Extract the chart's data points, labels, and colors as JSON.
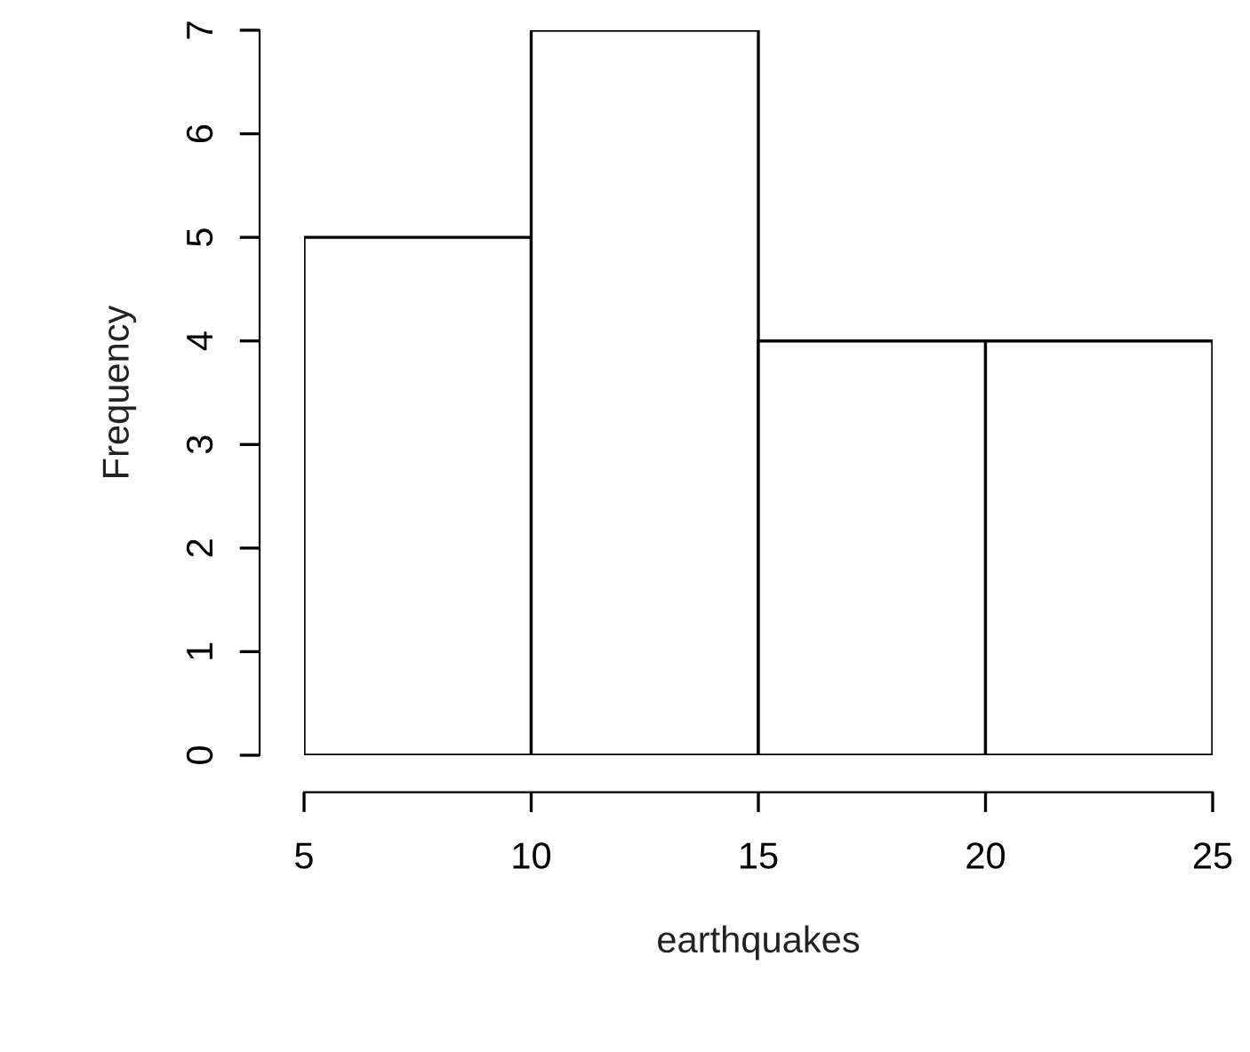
{
  "chart_data": {
    "type": "histogram",
    "xlabel": "earthquakes",
    "ylabel": "Frequency",
    "bins": [
      5,
      10,
      15,
      20,
      25
    ],
    "values": [
      5,
      7,
      4,
      4
    ],
    "color": "#ffffff",
    "xlim": [
      5,
      25
    ],
    "ylim": [
      0,
      7
    ],
    "xticks": [
      5,
      10,
      15,
      20,
      25
    ],
    "yticks": [
      0,
      1,
      2,
      3,
      4,
      5,
      6,
      7
    ],
    "grid": false
  }
}
